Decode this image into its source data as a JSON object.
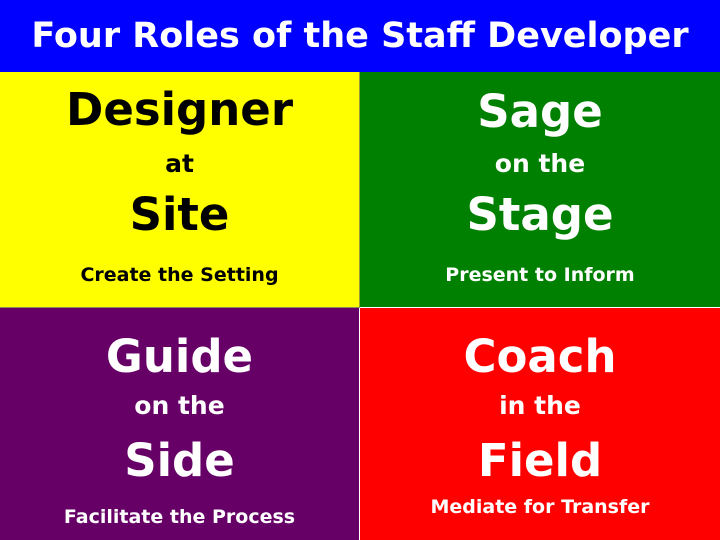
{
  "title": "Four Roles of the Staff Developer",
  "colors": {
    "title_bar": "#0000ff",
    "designer": "#ffff00",
    "sage": "#008000",
    "guide": "#660066",
    "coach": "#ff0000"
  },
  "roles": [
    {
      "name": "Designer",
      "connector": "at",
      "place": "Site",
      "purpose": "Create the Setting"
    },
    {
      "name": "Sage",
      "connector": "on the",
      "place": "Stage",
      "purpose": "Present to Inform"
    },
    {
      "name": "Guide",
      "connector": "on the",
      "place": "Side",
      "purpose": "Facilitate the Process"
    },
    {
      "name": "Coach",
      "connector": "in the",
      "place": "Field",
      "purpose": "Mediate for Transfer"
    }
  ]
}
